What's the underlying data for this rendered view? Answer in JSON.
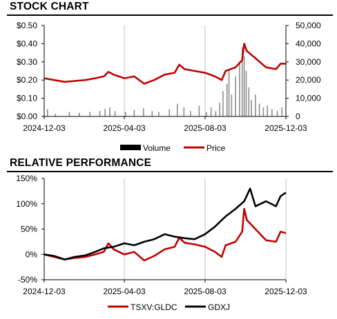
{
  "stock_section": {
    "title": "STOCK CHART"
  },
  "performance_section": {
    "title": "RELATIVE PERFORMANCE"
  },
  "colors": {
    "price": "#c00000",
    "volume": "#8c8c8c",
    "gdxj": "#000000",
    "grid": "#b0b0b0"
  },
  "chart_data": [
    {
      "type": "line",
      "title": "STOCK CHART",
      "x_start": "2024-12-03",
      "x_end": "2025-12-03",
      "x_tick_labels": [
        "2024-12-03",
        "2025-04-03",
        "2025-08-03",
        "2025-12-03"
      ],
      "y_left_ticks": [
        "$0.00",
        "$0.10",
        "$0.20",
        "$0.30",
        "$0.40",
        "$0.50"
      ],
      "y_left_range": [
        0,
        0.5
      ],
      "y_right_ticks": [
        "0",
        "10,000",
        "20,000",
        "30,000",
        "40,000",
        "50,000"
      ],
      "y_right_range": [
        0,
        50000
      ],
      "legend": [
        "Volume",
        "Price"
      ],
      "legend_position": "bottom",
      "grid": "vertical",
      "series": [
        {
          "name": "Price",
          "axis": "left",
          "points": [
            [
              "2024-12-03",
              0.21
            ],
            [
              "2024-12-18",
              0.2
            ],
            [
              "2025-01-03",
              0.19
            ],
            [
              "2025-01-18",
              0.195
            ],
            [
              "2025-02-03",
              0.2
            ],
            [
              "2025-02-18",
              0.21
            ],
            [
              "2025-03-03",
              0.22
            ],
            [
              "2025-03-10",
              0.245
            ],
            [
              "2025-03-18",
              0.23
            ],
            [
              "2025-04-03",
              0.21
            ],
            [
              "2025-04-18",
              0.22
            ],
            [
              "2025-05-03",
              0.18
            ],
            [
              "2025-05-18",
              0.2
            ],
            [
              "2025-06-03",
              0.23
            ],
            [
              "2025-06-18",
              0.24
            ],
            [
              "2025-06-25",
              0.285
            ],
            [
              "2025-07-03",
              0.26
            ],
            [
              "2025-07-18",
              0.25
            ],
            [
              "2025-08-03",
              0.24
            ],
            [
              "2025-08-18",
              0.22
            ],
            [
              "2025-08-28",
              0.2
            ],
            [
              "2025-09-03",
              0.25
            ],
            [
              "2025-09-18",
              0.27
            ],
            [
              "2025-09-28",
              0.31
            ],
            [
              "2025-10-01",
              0.4
            ],
            [
              "2025-10-05",
              0.36
            ],
            [
              "2025-10-18",
              0.32
            ],
            [
              "2025-11-03",
              0.27
            ],
            [
              "2025-11-18",
              0.26
            ],
            [
              "2025-11-25",
              0.29
            ],
            [
              "2025-12-03",
              0.29
            ]
          ]
        },
        {
          "name": "Volume",
          "type": "bar",
          "axis": "right",
          "points": [
            [
              "2024-12-08",
              4000
            ],
            [
              "2024-12-20",
              1500
            ],
            [
              "2025-01-10",
              2500
            ],
            [
              "2025-01-25",
              2000
            ],
            [
              "2025-02-10",
              2500
            ],
            [
              "2025-02-25",
              3000
            ],
            [
              "2025-03-05",
              4200
            ],
            [
              "2025-03-12",
              5000
            ],
            [
              "2025-03-20",
              3000
            ],
            [
              "2025-04-05",
              2500
            ],
            [
              "2025-04-18",
              3500
            ],
            [
              "2025-05-02",
              4500
            ],
            [
              "2025-05-15",
              3000
            ],
            [
              "2025-05-25",
              2500
            ],
            [
              "2025-06-10",
              4000
            ],
            [
              "2025-06-22",
              7000
            ],
            [
              "2025-07-02",
              5000
            ],
            [
              "2025-07-12",
              3000
            ],
            [
              "2025-07-25",
              6000
            ],
            [
              "2025-08-05",
              2500
            ],
            [
              "2025-08-12",
              5000
            ],
            [
              "2025-08-19",
              3000
            ],
            [
              "2025-08-25",
              7500
            ],
            [
              "2025-08-30",
              14000
            ],
            [
              "2025-09-05",
              18000
            ],
            [
              "2025-09-08",
              26000
            ],
            [
              "2025-09-12",
              12000
            ],
            [
              "2025-09-18",
              22000
            ],
            [
              "2025-09-24",
              30000
            ],
            [
              "2025-09-28",
              38000
            ],
            [
              "2025-10-01",
              33000
            ],
            [
              "2025-10-04",
              25000
            ],
            [
              "2025-10-08",
              16000
            ],
            [
              "2025-10-12",
              9000
            ],
            [
              "2025-10-18",
              12000
            ],
            [
              "2025-10-24",
              7000
            ],
            [
              "2025-10-30",
              5000
            ],
            [
              "2025-11-05",
              6000
            ],
            [
              "2025-11-12",
              4000
            ],
            [
              "2025-11-20",
              3000
            ],
            [
              "2025-11-27",
              5000
            ]
          ]
        }
      ]
    },
    {
      "type": "line",
      "title": "RELATIVE PERFORMANCE",
      "x_start": "2024-12-03",
      "x_end": "2025-12-03",
      "x_tick_labels": [
        "2024-12-03",
        "2025-04-03",
        "2025-08-03",
        "2025-12-03"
      ],
      "y_ticks": [
        "150%",
        "100%",
        "50%",
        "0%",
        "-50%"
      ],
      "y_range": [
        -50,
        150
      ],
      "y_unit": "%",
      "legend": [
        "TSXV:GLDC",
        "GDXJ"
      ],
      "legend_position": "bottom",
      "grid": "vertical",
      "series": [
        {
          "name": "TSXV:GLDC",
          "points": [
            [
              "2024-12-03",
              0
            ],
            [
              "2024-12-18",
              -5
            ],
            [
              "2025-01-03",
              -10
            ],
            [
              "2025-01-18",
              -7
            ],
            [
              "2025-02-03",
              -5
            ],
            [
              "2025-02-18",
              0
            ],
            [
              "2025-03-03",
              5
            ],
            [
              "2025-03-10",
              22
            ],
            [
              "2025-03-18",
              10
            ],
            [
              "2025-04-03",
              0
            ],
            [
              "2025-04-18",
              5
            ],
            [
              "2025-05-03",
              -12
            ],
            [
              "2025-05-18",
              -3
            ],
            [
              "2025-06-03",
              10
            ],
            [
              "2025-06-18",
              15
            ],
            [
              "2025-06-25",
              33
            ],
            [
              "2025-07-03",
              23
            ],
            [
              "2025-07-18",
              20
            ],
            [
              "2025-08-03",
              15
            ],
            [
              "2025-08-18",
              5
            ],
            [
              "2025-08-28",
              -5
            ],
            [
              "2025-09-03",
              18
            ],
            [
              "2025-09-18",
              25
            ],
            [
              "2025-09-28",
              45
            ],
            [
              "2025-10-01",
              90
            ],
            [
              "2025-10-05",
              68
            ],
            [
              "2025-10-18",
              50
            ],
            [
              "2025-11-03",
              28
            ],
            [
              "2025-11-18",
              25
            ],
            [
              "2025-11-25",
              45
            ],
            [
              "2025-12-03",
              42
            ]
          ]
        },
        {
          "name": "GDXJ",
          "points": [
            [
              "2024-12-03",
              0
            ],
            [
              "2024-12-18",
              -3
            ],
            [
              "2025-01-03",
              -10
            ],
            [
              "2025-01-18",
              -5
            ],
            [
              "2025-02-03",
              -2
            ],
            [
              "2025-02-18",
              5
            ],
            [
              "2025-03-03",
              12
            ],
            [
              "2025-03-18",
              15
            ],
            [
              "2025-04-03",
              22
            ],
            [
              "2025-04-18",
              18
            ],
            [
              "2025-05-03",
              25
            ],
            [
              "2025-05-18",
              30
            ],
            [
              "2025-06-03",
              40
            ],
            [
              "2025-06-18",
              35
            ],
            [
              "2025-07-03",
              32
            ],
            [
              "2025-07-18",
              30
            ],
            [
              "2025-08-03",
              40
            ],
            [
              "2025-08-18",
              55
            ],
            [
              "2025-09-03",
              75
            ],
            [
              "2025-09-18",
              90
            ],
            [
              "2025-10-01",
              105
            ],
            [
              "2025-10-10",
              130
            ],
            [
              "2025-10-18",
              95
            ],
            [
              "2025-11-03",
              105
            ],
            [
              "2025-11-18",
              95
            ],
            [
              "2025-11-25",
              115
            ],
            [
              "2025-12-03",
              122
            ]
          ]
        }
      ]
    }
  ]
}
